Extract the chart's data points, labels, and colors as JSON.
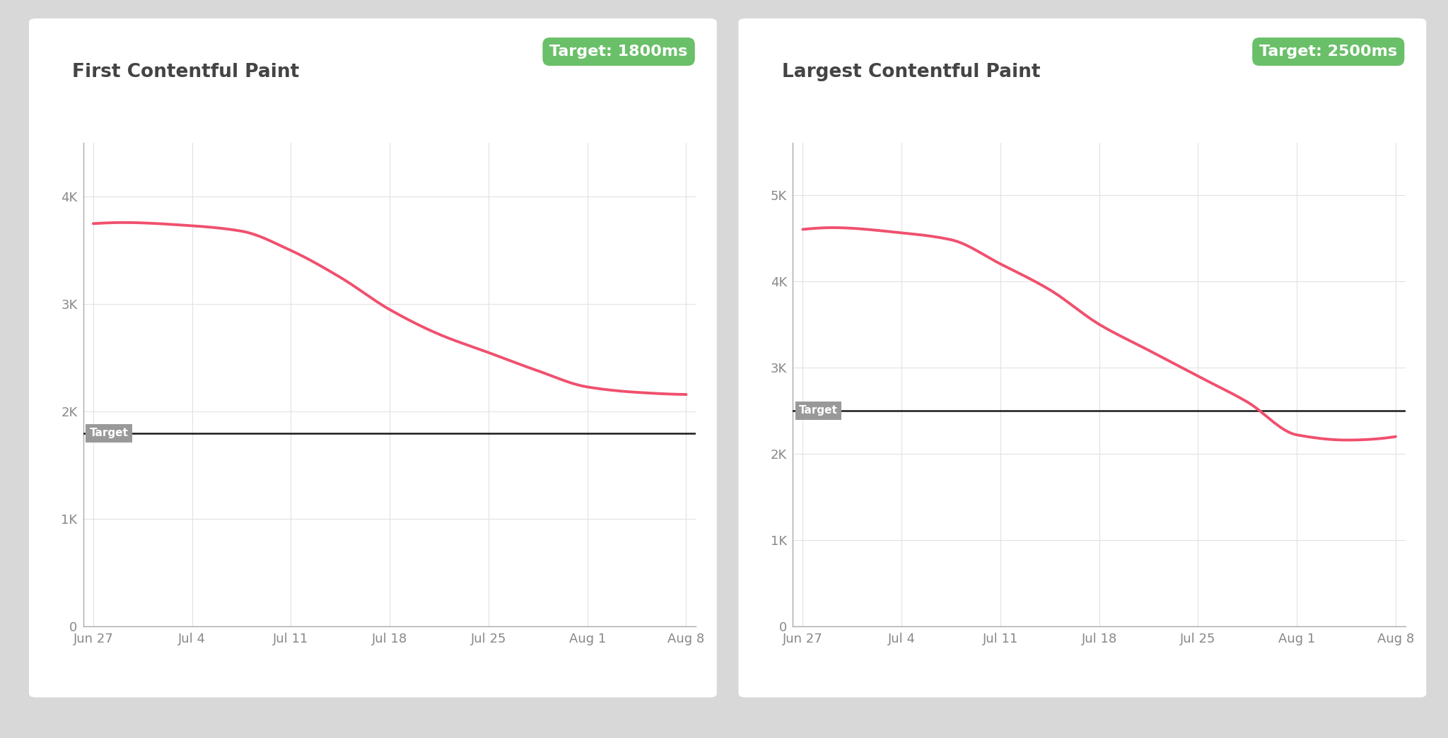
{
  "chart1": {
    "title": "First Contentful Paint",
    "target_label": "Target: 1800ms",
    "target_value": 1800,
    "ylim": [
      0,
      4500
    ],
    "yticks": [
      0,
      1000,
      2000,
      3000,
      4000
    ],
    "ytick_labels": [
      "0",
      "1K",
      "2K",
      "3K",
      "4K"
    ],
    "line_x": [
      0,
      0.3,
      1,
      1.5,
      2,
      2.5,
      3,
      3.5,
      4,
      4.5,
      5,
      5.5,
      6
    ],
    "line_y": [
      3750,
      3760,
      3730,
      3680,
      3500,
      3250,
      2950,
      2720,
      2550,
      2380,
      2230,
      2180,
      2160
    ],
    "line_color": "#f0506e",
    "target_line_color": "#1a1a1a",
    "target_badge_color": "#6abf69",
    "target_badge_text_color": "#ffffff"
  },
  "chart2": {
    "title": "Largest Contentful Paint",
    "target_label": "Target: 2500ms",
    "target_value": 2500,
    "ylim": [
      0,
      5600
    ],
    "yticks": [
      0,
      1000,
      2000,
      3000,
      4000,
      5000
    ],
    "ytick_labels": [
      "0",
      "1K",
      "2K",
      "3K",
      "4K",
      "5K"
    ],
    "line_x": [
      0,
      0.3,
      1,
      1.5,
      2,
      2.5,
      3,
      3.5,
      4,
      4.5,
      5,
      5.5,
      6
    ],
    "line_y": [
      4600,
      4620,
      4560,
      4480,
      4200,
      3900,
      3500,
      3200,
      2900,
      2600,
      2220,
      2160,
      2200
    ],
    "line_color": "#f0506e",
    "target_line_color": "#1a1a1a",
    "target_badge_color": "#6abf69",
    "target_badge_text_color": "#ffffff"
  },
  "xtick_labels": [
    "Jun 27",
    "Jul 4",
    "Jul 11",
    "Jul 18",
    "Jul 25",
    "Aug 1",
    "Aug 8"
  ],
  "background_color": "#d8d8d8",
  "card_color": "#ffffff",
  "grid_color": "#e2e2e2",
  "axis_color": "#aaaaaa",
  "tick_label_color": "#888888",
  "title_color": "#444444",
  "title_fontsize": 19,
  "tick_fontsize": 13,
  "badge_fontsize": 16,
  "target_label_fontsize": 11,
  "line_width": 2.8
}
